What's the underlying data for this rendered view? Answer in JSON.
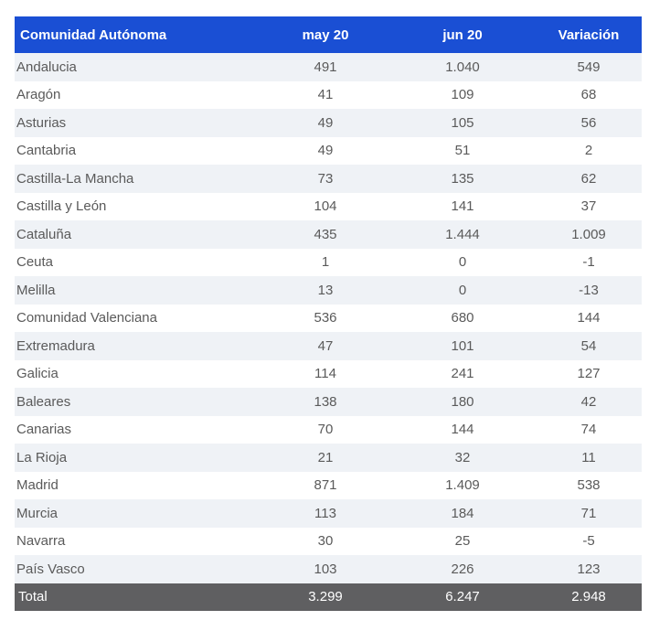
{
  "header": {
    "region": "Comunidad Autónoma",
    "may": "may 20",
    "jun": "jun 20",
    "variation": "Variación"
  },
  "rows": [
    {
      "region": "Andalucia",
      "may": "491",
      "jun": "1.040",
      "variation": "549"
    },
    {
      "region": "Aragón",
      "may": "41",
      "jun": "109",
      "variation": "68"
    },
    {
      "region": "Asturias",
      "may": "49",
      "jun": "105",
      "variation": "56"
    },
    {
      "region": "Cantabria",
      "may": "49",
      "jun": "51",
      "variation": "2"
    },
    {
      "region": "Castilla-La Mancha",
      "may": "73",
      "jun": "135",
      "variation": "62"
    },
    {
      "region": "Castilla y León",
      "may": "104",
      "jun": "141",
      "variation": "37"
    },
    {
      "region": "Cataluña",
      "may": "435",
      "jun": "1.444",
      "variation": "1.009"
    },
    {
      "region": "Ceuta",
      "may": "1",
      "jun": "0",
      "variation": "-1"
    },
    {
      "region": "Melilla",
      "may": "13",
      "jun": "0",
      "variation": "-13"
    },
    {
      "region": "Comunidad Valenciana",
      "may": "536",
      "jun": "680",
      "variation": "144"
    },
    {
      "region": "Extremadura",
      "may": "47",
      "jun": "101",
      "variation": "54"
    },
    {
      "region": "Galicia",
      "may": "114",
      "jun": "241",
      "variation": "127"
    },
    {
      "region": "Baleares",
      "may": "138",
      "jun": "180",
      "variation": "42"
    },
    {
      "region": "Canarias",
      "may": "70",
      "jun": "144",
      "variation": "74"
    },
    {
      "region": "La Rioja",
      "may": "21",
      "jun": "32",
      "variation": "11"
    },
    {
      "region": "Madrid",
      "may": "871",
      "jun": "1.409",
      "variation": "538"
    },
    {
      "region": "Murcia",
      "may": "113",
      "jun": "184",
      "variation": "71"
    },
    {
      "region": "Navarra",
      "may": "30",
      "jun": "25",
      "variation": "-5"
    },
    {
      "region": "País Vasco",
      "may": "103",
      "jun": "226",
      "variation": "123"
    }
  ],
  "total": {
    "region": "Total",
    "may": "3.299",
    "jun": "6.247",
    "variation": "2.948"
  },
  "colors": {
    "header_bg": "#1a4fd4",
    "stripe": "#eff2f6",
    "total_bg": "#5f5f61"
  }
}
